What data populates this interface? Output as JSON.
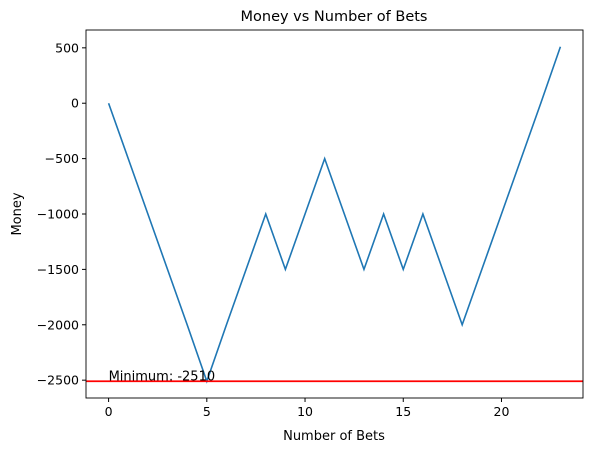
{
  "chart_data": {
    "type": "line",
    "title": "Money vs Number of Bets",
    "x_label": "Number of Bets",
    "y_label": "Money",
    "x": [
      0,
      1,
      2,
      3,
      4,
      5,
      6,
      7,
      8,
      9,
      10,
      11,
      12,
      13,
      14,
      15,
      16,
      17,
      18,
      19,
      20,
      21,
      22,
      23
    ],
    "series": [
      {
        "name": "Money",
        "color": "#1f77b4",
        "values": [
          0,
          -500,
          -1000,
          -1500,
          -2000,
          -2510,
          -2000,
          -1500,
          -1000,
          -1500,
          -1000,
          -500,
          -1000,
          -1500,
          -1000,
          -1500,
          -1000,
          -1500,
          -2000,
          -1500,
          -1000,
          -500,
          0,
          510
        ]
      }
    ],
    "hline": {
      "value": -2510,
      "color": "#ff0000"
    },
    "annotation": "Minimum: -2510",
    "xlim": [
      -1.15,
      24.15
    ],
    "xticks": [
      0,
      5,
      10,
      15,
      20
    ],
    "ylim": [
      -2661,
      661
    ],
    "yticks": [
      {
        "value": -2500,
        "label": "−2500"
      },
      {
        "value": -2000,
        "label": "−2000"
      },
      {
        "value": -1500,
        "label": "−1500"
      },
      {
        "value": -1000,
        "label": "−1000"
      },
      {
        "value": -500,
        "label": "−500"
      },
      0,
      500
    ],
    "grid": false
  }
}
